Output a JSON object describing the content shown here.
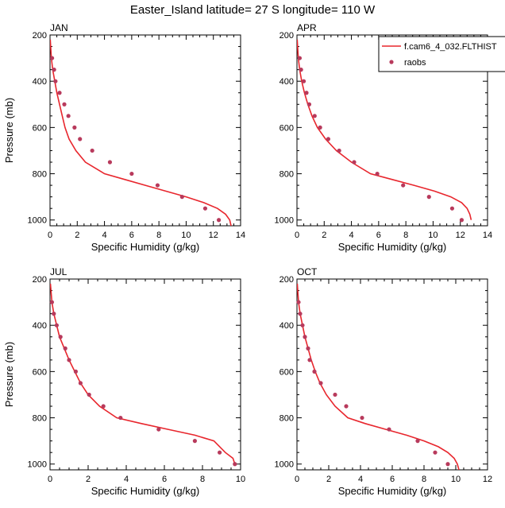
{
  "title": "Easter_Island  latitude= 27 S longitude= 110 W",
  "colors": {
    "model": "#e8262d",
    "obs": "#b83a5c",
    "axis": "#000000"
  },
  "legend": {
    "model_label": "f.cam6_4_032.FLTHIST",
    "obs_label": "raobs"
  },
  "chart_data": [
    {
      "type": "line",
      "panel": "JAN",
      "xlabel": "Specific Humidity (g/kg)",
      "ylabel": "Pressure (mb)",
      "xlim": [
        0,
        14
      ],
      "ylim": [
        200,
        1025
      ],
      "y_inverted": true,
      "xticks": [
        "0",
        "2",
        "4",
        "6",
        "8",
        "10",
        "12",
        "14"
      ],
      "yticks": [
        "200",
        "400",
        "600",
        "800",
        "1000"
      ],
      "series": [
        {
          "name": "f.cam6_4_032.FLTHIST",
          "kind": "line",
          "x": [
            0.02,
            0.1,
            0.2,
            0.35,
            0.5,
            0.7,
            0.9,
            1.1,
            1.4,
            1.9,
            2.6,
            4.0,
            5.5,
            7.0,
            8.5,
            10.0,
            11.3,
            12.3,
            12.9,
            13.2,
            13.3
          ],
          "y": [
            220,
            300,
            350,
            400,
            450,
            500,
            550,
            600,
            650,
            700,
            750,
            800,
            825,
            850,
            875,
            900,
            925,
            950,
            975,
            1000,
            1025
          ]
        },
        {
          "name": "raobs",
          "kind": "scatter",
          "x": [
            0.15,
            0.3,
            0.4,
            0.7,
            1.05,
            1.35,
            1.8,
            2.2,
            3.1,
            4.4,
            6.0,
            7.9,
            9.7,
            11.4,
            12.4
          ],
          "y": [
            300,
            350,
            400,
            450,
            500,
            550,
            600,
            650,
            700,
            750,
            800,
            850,
            900,
            950,
            1000
          ]
        }
      ]
    },
    {
      "type": "line",
      "panel": "APR",
      "xlabel": "Specific Humidity (g/kg)",
      "ylabel": "",
      "xlim": [
        0,
        14
      ],
      "ylim": [
        200,
        1025
      ],
      "y_inverted": true,
      "xticks": [
        "0",
        "2",
        "4",
        "6",
        "8",
        "10",
        "12",
        "14"
      ],
      "yticks": [
        "200",
        "400",
        "600",
        "800",
        "1000"
      ],
      "show_legend": true,
      "series": [
        {
          "name": "f.cam6_4_032.FLTHIST",
          "kind": "line",
          "x": [
            0.02,
            0.1,
            0.2,
            0.35,
            0.55,
            0.8,
            1.1,
            1.5,
            2.1,
            2.9,
            4.0,
            5.4,
            7.0,
            8.6,
            10.1,
            11.3,
            12.1,
            12.5,
            12.7,
            12.8
          ],
          "y": [
            220,
            300,
            350,
            400,
            450,
            500,
            550,
            600,
            650,
            700,
            750,
            800,
            825,
            850,
            875,
            900,
            925,
            950,
            975,
            1000
          ]
        },
        {
          "name": "raobs",
          "kind": "scatter",
          "x": [
            0.2,
            0.3,
            0.5,
            0.7,
            0.9,
            1.3,
            1.7,
            2.3,
            3.1,
            4.2,
            5.9,
            7.8,
            9.7,
            11.4,
            12.1
          ],
          "y": [
            300,
            350,
            400,
            450,
            500,
            550,
            600,
            650,
            700,
            750,
            800,
            850,
            900,
            950,
            1000
          ]
        }
      ]
    },
    {
      "type": "line",
      "panel": "JUL",
      "xlabel": "Specific Humidity (g/kg)",
      "ylabel": "Pressure (mb)",
      "xlim": [
        0,
        10
      ],
      "ylim": [
        200,
        1025
      ],
      "y_inverted": true,
      "xticks": [
        "0",
        "2",
        "4",
        "6",
        "8",
        "10"
      ],
      "yticks": [
        "200",
        "400",
        "600",
        "800",
        "1000"
      ],
      "series": [
        {
          "name": "f.cam6_4_032.FLTHIST",
          "kind": "line",
          "x": [
            0.02,
            0.1,
            0.2,
            0.35,
            0.5,
            0.75,
            1.0,
            1.3,
            1.6,
            2.0,
            2.6,
            3.5,
            4.8,
            6.2,
            7.6,
            8.6,
            9.2,
            9.6,
            9.7
          ],
          "y": [
            220,
            300,
            350,
            400,
            450,
            500,
            550,
            600,
            650,
            700,
            750,
            800,
            825,
            850,
            875,
            900,
            950,
            975,
            1000
          ]
        },
        {
          "name": "raobs",
          "kind": "scatter",
          "x": [
            0.1,
            0.2,
            0.35,
            0.55,
            0.8,
            1.0,
            1.35,
            1.6,
            2.05,
            2.8,
            3.7,
            5.7,
            7.6,
            8.9,
            9.7
          ],
          "y": [
            300,
            350,
            400,
            450,
            500,
            550,
            600,
            650,
            700,
            750,
            800,
            850,
            900,
            950,
            1000
          ]
        }
      ]
    },
    {
      "type": "line",
      "panel": "OCT",
      "xlabel": "Specific Humidity (g/kg)",
      "ylabel": "",
      "xlim": [
        0,
        12
      ],
      "ylim": [
        200,
        1025
      ],
      "y_inverted": true,
      "xticks": [
        "0",
        "2",
        "4",
        "6",
        "8",
        "10",
        "12"
      ],
      "yticks": [
        "200",
        "400",
        "600",
        "800",
        "1000"
      ],
      "series": [
        {
          "name": "f.cam6_4_032.FLTHIST",
          "kind": "line",
          "x": [
            0.02,
            0.1,
            0.2,
            0.35,
            0.5,
            0.7,
            0.9,
            1.15,
            1.45,
            1.85,
            2.4,
            3.2,
            4.3,
            5.6,
            6.9,
            8.0,
            8.9,
            9.5,
            9.9,
            10.1,
            10.2
          ],
          "y": [
            220,
            300,
            350,
            400,
            450,
            500,
            550,
            600,
            650,
            700,
            750,
            800,
            825,
            850,
            875,
            900,
            925,
            950,
            975,
            1000,
            1025
          ]
        },
        {
          "name": "raobs",
          "kind": "scatter",
          "x": [
            0.1,
            0.2,
            0.35,
            0.5,
            0.7,
            0.8,
            1.1,
            1.5,
            2.4,
            3.1,
            4.1,
            5.8,
            7.6,
            8.7,
            9.5
          ],
          "y": [
            300,
            350,
            400,
            450,
            500,
            550,
            600,
            650,
            700,
            750,
            800,
            850,
            900,
            950,
            1000
          ]
        }
      ]
    }
  ]
}
